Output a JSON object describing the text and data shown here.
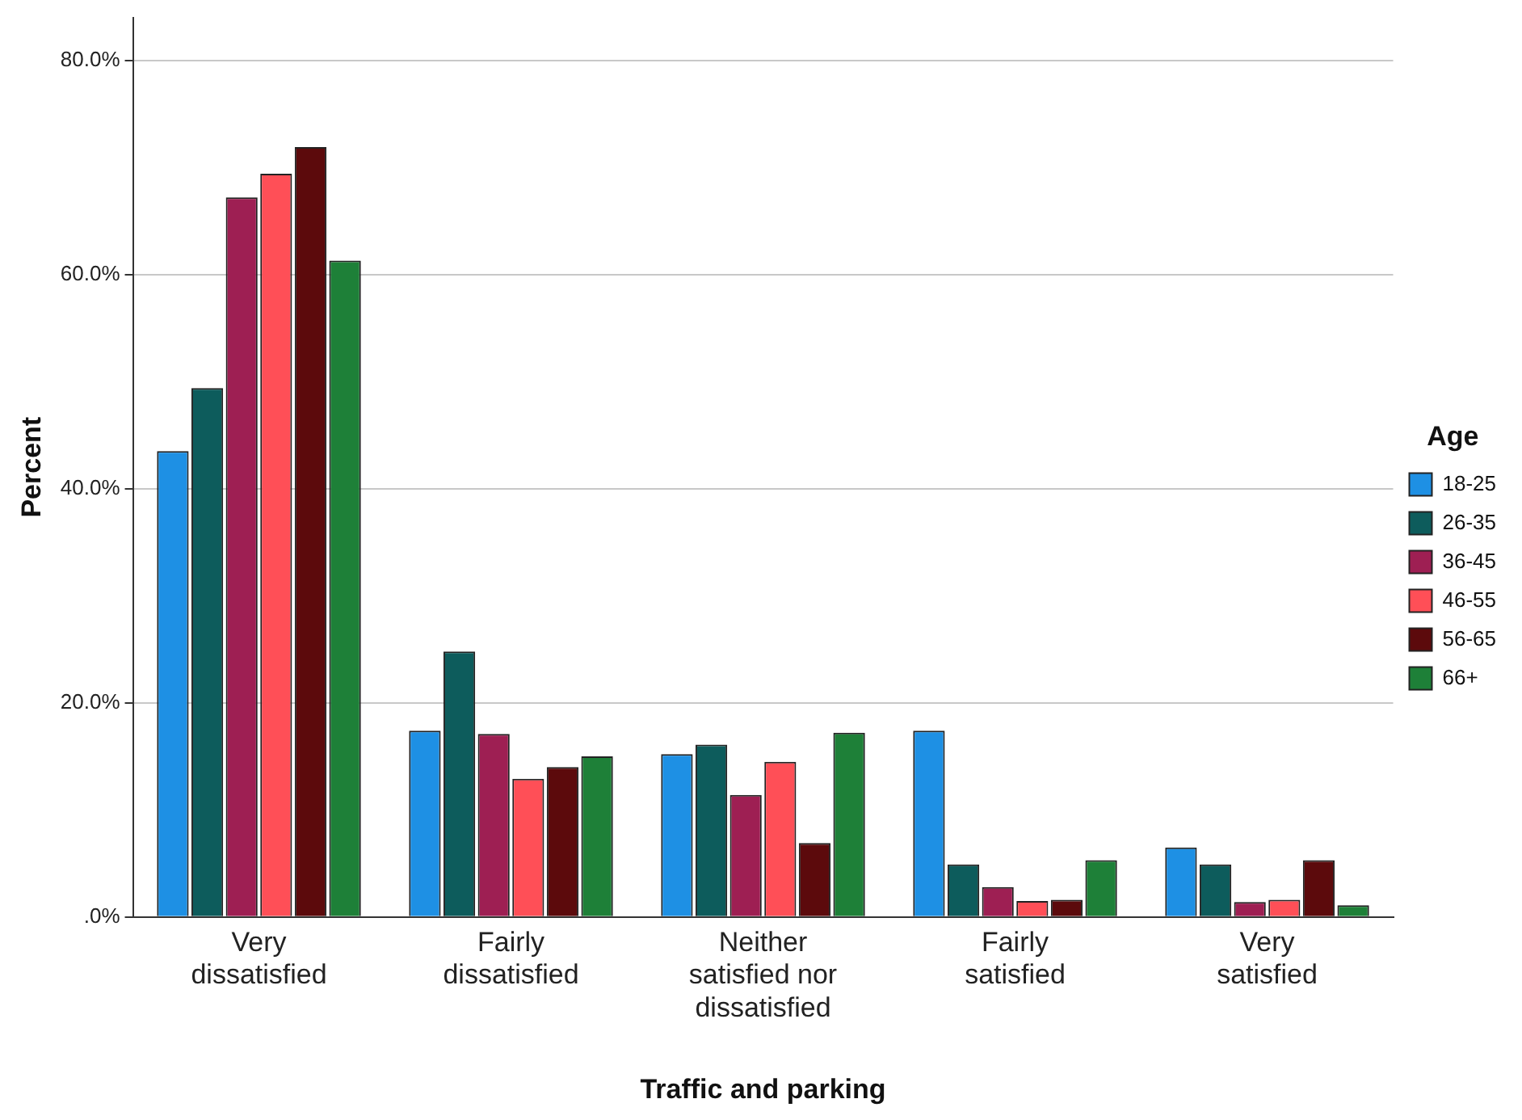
{
  "chart_data": {
    "type": "bar",
    "xlabel": "Traffic and parking",
    "ylabel": "Percent",
    "legend_title": "Age",
    "legend": "right",
    "grid": "y",
    "categories": [
      "Very dissatisfied",
      "Fairly dissatisfied",
      "Neither satisfied nor dissatisfied",
      "Fairly satisfied",
      "Very satisfied"
    ],
    "ylim": [
      0,
      84
    ],
    "yticks": [
      {
        "value": 0,
        "label": ".0%"
      },
      {
        "value": 20,
        "label": "20.0%"
      },
      {
        "value": 40,
        "label": "40.0%"
      },
      {
        "value": 60,
        "label": "60.0%"
      },
      {
        "value": 80,
        "label": "80.0%"
      }
    ],
    "series": [
      {
        "name": "18-25",
        "color": "#1e90e4",
        "values": [
          43.5,
          17.4,
          15.2,
          17.4,
          6.5
        ]
      },
      {
        "name": "26-35",
        "color": "#0d5c5c",
        "values": [
          49.4,
          24.8,
          16.1,
          4.9,
          4.9
        ]
      },
      {
        "name": "36-45",
        "color": "#9e1f53",
        "values": [
          67.2,
          17.1,
          11.4,
          2.8,
          1.4
        ]
      },
      {
        "name": "46-55",
        "color": "#ff4f57",
        "values": [
          69.4,
          12.9,
          14.5,
          1.5,
          1.6
        ]
      },
      {
        "name": "56-65",
        "color": "#5c0a0c",
        "values": [
          71.9,
          14.0,
          6.9,
          1.6,
          5.3
        ]
      },
      {
        "name": "66+",
        "color": "#1e8038",
        "values": [
          61.3,
          15.0,
          17.2,
          5.3,
          1.1
        ]
      }
    ]
  }
}
